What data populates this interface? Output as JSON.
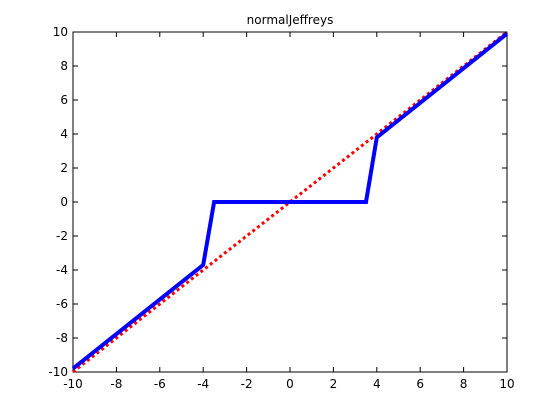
{
  "chart_data": {
    "type": "line",
    "title": "normalJeffreys",
    "xlabel": "",
    "ylabel": "",
    "xlim": [
      -10,
      10
    ],
    "ylim": [
      -10,
      10
    ],
    "xticks": [
      -10,
      -8,
      -6,
      -4,
      -2,
      0,
      2,
      4,
      6,
      8,
      10
    ],
    "yticks": [
      -10,
      -8,
      -6,
      -4,
      -2,
      0,
      2,
      4,
      6,
      8,
      10
    ],
    "grid": false,
    "legend": "none",
    "series": [
      {
        "style": "solid",
        "color": "#0000ff",
        "x": [
          -10,
          -4,
          -3.5,
          3.5,
          4,
          10
        ],
        "y": [
          -9.8,
          -3.7,
          0,
          0,
          3.8,
          9.9
        ]
      },
      {
        "style": "dotted",
        "color": "#ff0000",
        "x": [
          -10,
          10
        ],
        "y": [
          -10,
          10
        ]
      }
    ]
  }
}
